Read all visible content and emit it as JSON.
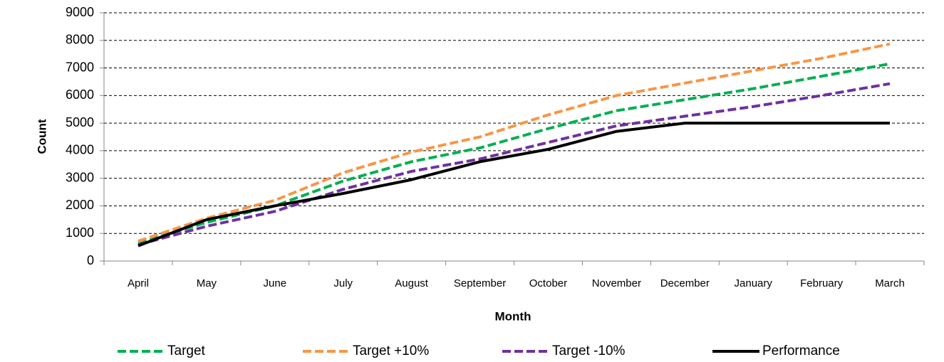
{
  "chart_data": {
    "type": "line",
    "x_label": "Month",
    "y_label": "Count",
    "categories": [
      "April",
      "May",
      "June",
      "July",
      "August",
      "September",
      "October",
      "November",
      "December",
      "January",
      "February",
      "March"
    ],
    "series": [
      {
        "name": "Target",
        "color": "#00b050",
        "line_style": "dashed",
        "values": [
          650,
          1400,
          2000,
          2900,
          3600,
          4100,
          4800,
          5450,
          5850,
          6250,
          6700,
          7150
        ]
      },
      {
        "name": "Target +10%",
        "color": "#f79646",
        "line_style": "dashed",
        "values": [
          720,
          1550,
          2200,
          3200,
          3950,
          4500,
          5300,
          6000,
          6450,
          6900,
          7350,
          7870
        ]
      },
      {
        "name": "Target -10%",
        "color": "#7030a0",
        "line_style": "dashed",
        "values": [
          590,
          1260,
          1800,
          2600,
          3250,
          3700,
          4300,
          4900,
          5250,
          5600,
          6000,
          6430
        ]
      },
      {
        "name": "Performance",
        "color": "#000000",
        "line_style": "solid",
        "values": [
          550,
          1500,
          2000,
          2450,
          2950,
          3600,
          4050,
          4700,
          5000,
          5000,
          5000,
          5000
        ]
      }
    ],
    "ylim": [
      0,
      9000
    ],
    "yticks": [
      0,
      1000,
      2000,
      3000,
      4000,
      5000,
      6000,
      7000,
      8000,
      9000
    ],
    "grid": true,
    "legend": "bottom"
  }
}
